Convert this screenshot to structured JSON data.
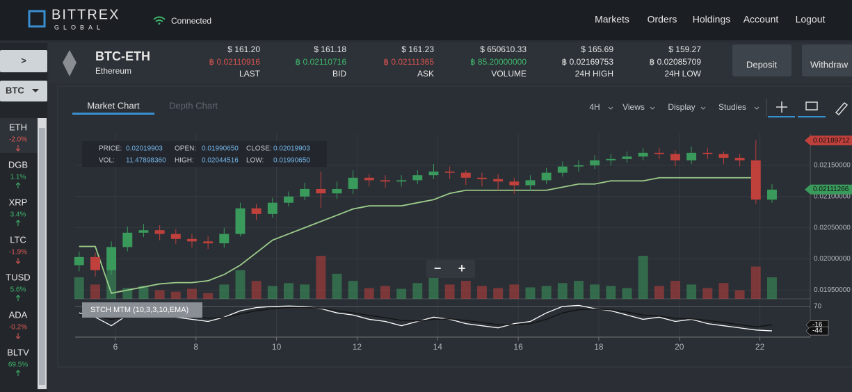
{
  "header": {
    "logo": "BITTREX",
    "logo_sub": "GLOBAL",
    "status": "Connected",
    "nav": [
      "Markets",
      "Orders",
      "Holdings",
      "Account",
      "Logout"
    ]
  },
  "sidebar": {
    "toggle": ">",
    "base": "BTC",
    "markets": [
      {
        "symbol": "ETH",
        "change": "-2.0%"
      },
      {
        "symbol": "DGB",
        "change": "1.1%"
      },
      {
        "symbol": "XRP",
        "change": "3.4%"
      },
      {
        "symbol": "LTC",
        "change": "-1.9%"
      },
      {
        "symbol": "TUSD",
        "change": "5.6%"
      },
      {
        "symbol": "ADA",
        "change": "-0.2%"
      },
      {
        "symbol": "BLTV",
        "change": "69.5%"
      }
    ]
  },
  "ticker": {
    "pair": "BTC-ETH",
    "name": "Ethereum",
    "stats": [
      {
        "usd": "$ 161.20",
        "btc": "฿ 0.02110916",
        "label": "LAST",
        "color": "#d9534f"
      },
      {
        "usd": "$ 161.18",
        "btc": "฿ 0.02110716",
        "label": "BID",
        "color": "#3fb56a"
      },
      {
        "usd": "$ 161.23",
        "btc": "฿ 0.02111365",
        "label": "ASK",
        "color": "#d9534f"
      },
      {
        "usd": "$ 650610.33",
        "btc": "฿ 85.20000000",
        "label": "VOLUME",
        "color": "#3fb56a"
      },
      {
        "usd": "$ 165.69",
        "btc": "฿ 0.02169753",
        "label": "24H HIGH",
        "color": "#e6e6e6"
      },
      {
        "usd": "$ 159.27",
        "btc": "฿ 0.02085709",
        "label": "24H LOW",
        "color": "#e6e6e6"
      }
    ],
    "buttons": [
      "Deposit",
      "Withdraw"
    ]
  },
  "chart_panel": {
    "tabs": [
      "Market Chart",
      "Depth Chart"
    ],
    "tools": [
      "4H",
      "Views",
      "Display",
      "Studies"
    ],
    "zoom": [
      "−",
      "+"
    ],
    "chart_data": {
      "type": "candlestick",
      "info": [
        {
          "label": "PRICE:",
          "value": "0.02019903"
        },
        {
          "label": "OPEN:",
          "value": "0.01990650"
        },
        {
          "label": "CLOSE:",
          "value": "0.02019903"
        },
        {
          "label": "VOL:",
          "value": "11.47898360"
        },
        {
          "label": "HIGH:",
          "value": "0.02044516"
        },
        {
          "label": "LOW:",
          "value": "0.01990650"
        }
      ],
      "x": [
        5.1,
        5.5,
        5.9,
        6.3,
        6.7,
        7.1,
        7.5,
        7.9,
        8.3,
        8.7,
        9.1,
        9.5,
        9.9,
        10.3,
        10.7,
        11.1,
        11.5,
        11.9,
        12.3,
        12.7,
        13.1,
        13.5,
        13.9,
        14.3,
        14.7,
        15.1,
        15.5,
        15.9,
        16.3,
        16.7,
        17.1,
        17.5,
        17.9,
        18.3,
        18.7,
        19.1,
        19.5,
        19.9,
        20.3,
        20.7,
        21.1,
        21.5,
        21.9,
        22.3
      ],
      "open": [
        0.0199,
        0.02003,
        0.01982,
        0.02019,
        0.02042,
        0.02046,
        0.0204,
        0.02032,
        0.02028,
        0.02025,
        0.0204,
        0.02081,
        0.02072,
        0.0209,
        0.021,
        0.02112,
        0.02105,
        0.02112,
        0.0213,
        0.02126,
        0.02124,
        0.02126,
        0.02134,
        0.0214,
        0.02138,
        0.0213,
        0.02128,
        0.02124,
        0.02118,
        0.02126,
        0.02138,
        0.02148,
        0.0215,
        0.02158,
        0.0216,
        0.02164,
        0.0217,
        0.02168,
        0.02158,
        0.0217,
        0.02168,
        0.02162,
        0.02158,
        0.02095
      ],
      "high": [
        0.02012,
        0.0201,
        0.02028,
        0.02052,
        0.02056,
        0.02054,
        0.02048,
        0.0204,
        0.02036,
        0.0205,
        0.0209,
        0.02088,
        0.02098,
        0.02108,
        0.02122,
        0.0214,
        0.02124,
        0.02142,
        0.02136,
        0.02134,
        0.02134,
        0.02142,
        0.02152,
        0.02148,
        0.02142,
        0.02138,
        0.02136,
        0.0213,
        0.02134,
        0.02146,
        0.02156,
        0.02158,
        0.02166,
        0.02168,
        0.02172,
        0.02178,
        0.02178,
        0.02174,
        0.0218,
        0.02178,
        0.02172,
        0.02168,
        0.0219,
        0.0212
      ],
      "low": [
        0.0198,
        0.01972,
        0.01975,
        0.02012,
        0.02035,
        0.0203,
        0.02024,
        0.02018,
        0.02016,
        0.02018,
        0.02036,
        0.02062,
        0.02066,
        0.02084,
        0.02094,
        0.02082,
        0.02096,
        0.02104,
        0.02116,
        0.02114,
        0.02116,
        0.0212,
        0.02128,
        0.02128,
        0.02118,
        0.02116,
        0.0211,
        0.02104,
        0.0211,
        0.0212,
        0.02132,
        0.0214,
        0.02144,
        0.0215,
        0.02154,
        0.02158,
        0.0216,
        0.02148,
        0.02152,
        0.0216,
        0.02152,
        0.02148,
        0.02088,
        0.0209
      ],
      "close": [
        0.02003,
        0.01982,
        0.02019,
        0.02042,
        0.02046,
        0.0204,
        0.02032,
        0.02028,
        0.02025,
        0.0204,
        0.02081,
        0.02072,
        0.0209,
        0.021,
        0.02112,
        0.02105,
        0.02112,
        0.0213,
        0.02126,
        0.02124,
        0.02126,
        0.02134,
        0.0214,
        0.02138,
        0.0213,
        0.02128,
        0.02124,
        0.02118,
        0.02126,
        0.02138,
        0.02148,
        0.0215,
        0.02158,
        0.0216,
        0.02164,
        0.0217,
        0.02168,
        0.02158,
        0.0217,
        0.02168,
        0.02162,
        0.02158,
        0.02095,
        0.02111
      ],
      "volume": [
        30,
        20,
        45,
        15,
        18,
        12,
        10,
        14,
        8,
        20,
        40,
        25,
        18,
        22,
        20,
        60,
        35,
        25,
        15,
        18,
        14,
        22,
        30,
        20,
        25,
        18,
        15,
        20,
        16,
        18,
        22,
        25,
        20,
        18,
        15,
        60,
        18,
        25,
        20,
        15,
        22,
        12,
        45,
        30
      ],
      "trail": [
        0.0202,
        0.0202,
        0.01945,
        0.0195,
        0.01955,
        0.0196,
        0.01962,
        0.01962,
        0.01965,
        0.01975,
        0.0199,
        0.0201,
        0.0203,
        0.0204,
        0.0205,
        0.0206,
        0.0207,
        0.0208,
        0.02085,
        0.02085,
        0.02085,
        0.0209,
        0.02095,
        0.02105,
        0.0211,
        0.0211,
        0.0211,
        0.0211,
        0.0211,
        0.0211,
        0.02115,
        0.0212,
        0.0212,
        0.02125,
        0.02125,
        0.02125,
        0.0213,
        0.0213,
        0.0213,
        0.0213,
        0.0213,
        0.0213,
        0.0213,
        null
      ],
      "up_color": "#3a9a5c",
      "down_color": "#c0403c",
      "trail_color": "#9ccc8a",
      "xlim": [
        5,
        23.25
      ],
      "xticks": [
        6,
        8,
        10,
        12,
        14,
        16,
        18,
        20,
        22
      ],
      "ylim": [
        0.01936,
        0.02201
      ],
      "yticks": [
        {
          "value": 0.0195,
          "label": "0.01950000"
        },
        {
          "value": 0.02,
          "label": "0.02000000"
        },
        {
          "value": 0.0205,
          "label": "0.02050000"
        },
        {
          "value": 0.021,
          "label": "0.02100000"
        },
        {
          "value": 0.0215,
          "label": "0.02150000"
        }
      ],
      "price_tags": [
        {
          "value": 0.02189712,
          "color": "#c0403c"
        },
        {
          "value": 0.02111266,
          "color": "#3a9a5c"
        }
      ],
      "study": {
        "label": "STCH MTM (10,3,3,10,EMA)",
        "ylim": [
          -73,
          99
        ],
        "yticks": [
          70
        ],
        "series": [
          {
            "color": "#ffffff",
            "values": [
              40,
              20,
              -20,
              30,
              60,
              50,
              20,
              10,
              0,
              20,
              50,
              65,
              70,
              72,
              70,
              60,
              40,
              30,
              10,
              0,
              -20,
              0,
              20,
              10,
              -10,
              -20,
              -30,
              -10,
              0,
              40,
              70,
              75,
              60,
              50,
              30,
              10,
              20,
              0,
              10,
              -10,
              -20,
              -30,
              -40,
              -44
            ]
          },
          {
            "color": "#111111",
            "values": [
              30,
              25,
              10,
              20,
              40,
              45,
              35,
              25,
              15,
              18,
              35,
              50,
              60,
              65,
              66,
              62,
              50,
              40,
              28,
              18,
              5,
              2,
              10,
              12,
              5,
              -5,
              -15,
              -15,
              -10,
              10,
              40,
              55,
              58,
              54,
              44,
              30,
              25,
              15,
              12,
              5,
              -5,
              -15,
              -25,
              -16
            ]
          }
        ]
      }
    }
  }
}
